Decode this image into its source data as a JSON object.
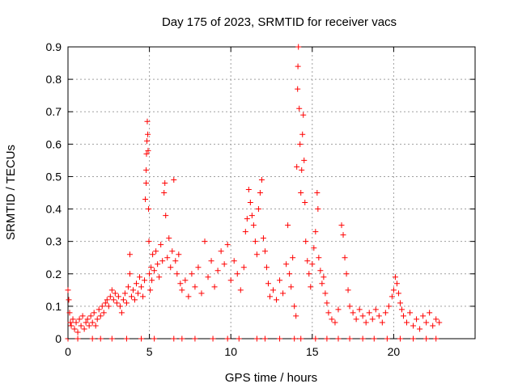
{
  "chart_data": {
    "type": "scatter",
    "title": "Day 175 of 2023, SRMTID for receiver vacs",
    "xlabel": "GPS time / hours",
    "ylabel": "SRMTID / TECUs",
    "xlim": [
      0,
      25
    ],
    "ylim": [
      0,
      0.9
    ],
    "x_ticks": [
      0,
      5,
      10,
      15,
      20
    ],
    "x_tick_labels": [
      "0",
      "5",
      "10",
      "15",
      "20"
    ],
    "y_ticks": [
      0,
      0.1,
      0.2,
      0.3,
      0.4,
      0.5,
      0.6,
      0.7,
      0.8,
      0.9
    ],
    "y_tick_labels": [
      "0",
      "0.1",
      "0.2",
      "0.3",
      "0.4",
      "0.5",
      "0.6",
      "0.7",
      "0.8",
      "0.9"
    ],
    "grid": true,
    "marker": "plus",
    "color": "#ff0000",
    "series": [
      {
        "name": "SRMTID",
        "points": [
          [
            0.0,
            0.15
          ],
          [
            0.05,
            0.12
          ],
          [
            0.1,
            0.08
          ],
          [
            0.15,
            0.05
          ],
          [
            0.2,
            0.04
          ],
          [
            0.3,
            0.06
          ],
          [
            0.4,
            0.03
          ],
          [
            0.5,
            0.05
          ],
          [
            0.6,
            0.02
          ],
          [
            0.7,
            0.06
          ],
          [
            0.8,
            0.04
          ],
          [
            0.9,
            0.07
          ],
          [
            1.0,
            0.03
          ],
          [
            1.1,
            0.05
          ],
          [
            1.2,
            0.06
          ],
          [
            1.3,
            0.04
          ],
          [
            1.4,
            0.07
          ],
          [
            1.5,
            0.05
          ],
          [
            1.6,
            0.08
          ],
          [
            1.7,
            0.04
          ],
          [
            1.8,
            0.06
          ],
          [
            1.9,
            0.09
          ],
          [
            2.0,
            0.07
          ],
          [
            2.1,
            0.1
          ],
          [
            2.2,
            0.08
          ],
          [
            2.3,
            0.11
          ],
          [
            0.0,
            0.0
          ],
          [
            0.6,
            0.0
          ],
          [
            1.5,
            0.0
          ],
          [
            2.0,
            0.0
          ],
          [
            2.7,
            0.0
          ],
          [
            3.6,
            0.0
          ],
          [
            4.5,
            0.0
          ],
          [
            5.3,
            0.0
          ],
          [
            6.5,
            0.0
          ],
          [
            7.0,
            0.0
          ],
          [
            7.8,
            0.0
          ],
          [
            8.9,
            0.0
          ],
          [
            9.8,
            0.0
          ],
          [
            10.5,
            0.0
          ],
          [
            11.6,
            0.0
          ],
          [
            12.1,
            0.0
          ],
          [
            13.0,
            0.0
          ],
          [
            13.9,
            0.0
          ],
          [
            14.3,
            0.0
          ],
          [
            15.2,
            0.0
          ],
          [
            15.9,
            0.0
          ],
          [
            16.6,
            0.0
          ],
          [
            17.3,
            0.0
          ],
          [
            18.1,
            0.0
          ],
          [
            18.8,
            0.0
          ],
          [
            19.6,
            0.0
          ],
          [
            20.4,
            0.0
          ],
          [
            21.2,
            0.0
          ],
          [
            22.0,
            0.0
          ],
          [
            22.6,
            0.0
          ],
          [
            2.4,
            0.12
          ],
          [
            2.5,
            0.1
          ],
          [
            2.6,
            0.13
          ],
          [
            2.7,
            0.15
          ],
          [
            2.8,
            0.12
          ],
          [
            2.9,
            0.14
          ],
          [
            3.0,
            0.11
          ],
          [
            3.1,
            0.13
          ],
          [
            3.2,
            0.1
          ],
          [
            3.3,
            0.08
          ],
          [
            3.4,
            0.12
          ],
          [
            3.5,
            0.14
          ],
          [
            3.6,
            0.11
          ],
          [
            3.7,
            0.16
          ],
          [
            3.8,
            0.2
          ],
          [
            3.8,
            0.26
          ],
          [
            3.9,
            0.13
          ],
          [
            4.0,
            0.15
          ],
          [
            4.1,
            0.12
          ],
          [
            4.2,
            0.17
          ],
          [
            4.3,
            0.14
          ],
          [
            4.4,
            0.19
          ],
          [
            4.5,
            0.16
          ],
          [
            4.6,
            0.13
          ],
          [
            4.7,
            0.18
          ],
          [
            4.75,
            0.43
          ],
          [
            4.8,
            0.48
          ],
          [
            4.8,
            0.52
          ],
          [
            4.82,
            0.57
          ],
          [
            4.85,
            0.61
          ],
          [
            4.87,
            0.67
          ],
          [
            4.9,
            0.63
          ],
          [
            4.92,
            0.58
          ],
          [
            4.95,
            0.4
          ],
          [
            4.97,
            0.3
          ],
          [
            5.0,
            0.2
          ],
          [
            5.05,
            0.15
          ],
          [
            5.1,
            0.22
          ],
          [
            5.15,
            0.18
          ],
          [
            5.2,
            0.26
          ],
          [
            5.3,
            0.21
          ],
          [
            5.4,
            0.27
          ],
          [
            5.5,
            0.23
          ],
          [
            5.6,
            0.19
          ],
          [
            5.7,
            0.29
          ],
          [
            5.8,
            0.24
          ],
          [
            5.9,
            0.45
          ],
          [
            5.95,
            0.48
          ],
          [
            6.0,
            0.38
          ],
          [
            6.1,
            0.25
          ],
          [
            6.2,
            0.31
          ],
          [
            6.3,
            0.22
          ],
          [
            6.4,
            0.27
          ],
          [
            6.5,
            0.49
          ],
          [
            6.6,
            0.24
          ],
          [
            6.7,
            0.2
          ],
          [
            6.8,
            0.26
          ],
          [
            6.9,
            0.17
          ],
          [
            7.0,
            0.15
          ],
          [
            7.2,
            0.18
          ],
          [
            7.4,
            0.13
          ],
          [
            7.6,
            0.2
          ],
          [
            7.8,
            0.16
          ],
          [
            8.0,
            0.22
          ],
          [
            8.2,
            0.14
          ],
          [
            8.4,
            0.3
          ],
          [
            8.6,
            0.19
          ],
          [
            8.8,
            0.24
          ],
          [
            9.0,
            0.16
          ],
          [
            9.2,
            0.21
          ],
          [
            9.4,
            0.27
          ],
          [
            9.6,
            0.23
          ],
          [
            9.8,
            0.29
          ],
          [
            10.0,
            0.18
          ],
          [
            10.2,
            0.24
          ],
          [
            10.4,
            0.2
          ],
          [
            10.6,
            0.15
          ],
          [
            10.8,
            0.22
          ],
          [
            10.9,
            0.33
          ],
          [
            11.0,
            0.37
          ],
          [
            11.1,
            0.46
          ],
          [
            11.2,
            0.42
          ],
          [
            11.3,
            0.38
          ],
          [
            11.4,
            0.35
          ],
          [
            11.5,
            0.3
          ],
          [
            11.6,
            0.26
          ],
          [
            11.7,
            0.4
          ],
          [
            11.8,
            0.45
          ],
          [
            11.9,
            0.49
          ],
          [
            12.0,
            0.31
          ],
          [
            12.1,
            0.27
          ],
          [
            12.2,
            0.22
          ],
          [
            12.3,
            0.17
          ],
          [
            12.4,
            0.13
          ],
          [
            12.6,
            0.15
          ],
          [
            12.8,
            0.12
          ],
          [
            13.0,
            0.18
          ],
          [
            13.2,
            0.14
          ],
          [
            13.4,
            0.23
          ],
          [
            13.5,
            0.35
          ],
          [
            13.6,
            0.2
          ],
          [
            13.7,
            0.16
          ],
          [
            13.8,
            0.25
          ],
          [
            13.9,
            0.1
          ],
          [
            14.0,
            0.07
          ],
          [
            14.05,
            0.53
          ],
          [
            14.1,
            0.77
          ],
          [
            14.12,
            0.84
          ],
          [
            14.15,
            0.9
          ],
          [
            14.2,
            0.71
          ],
          [
            14.25,
            0.6
          ],
          [
            14.3,
            0.45
          ],
          [
            14.35,
            0.52
          ],
          [
            14.4,
            0.63
          ],
          [
            14.45,
            0.69
          ],
          [
            14.5,
            0.55
          ],
          [
            14.55,
            0.42
          ],
          [
            14.6,
            0.3
          ],
          [
            14.7,
            0.24
          ],
          [
            14.8,
            0.2
          ],
          [
            14.9,
            0.16
          ],
          [
            15.0,
            0.23
          ],
          [
            15.1,
            0.28
          ],
          [
            15.2,
            0.33
          ],
          [
            15.3,
            0.45
          ],
          [
            15.35,
            0.4
          ],
          [
            15.4,
            0.25
          ],
          [
            15.5,
            0.21
          ],
          [
            15.6,
            0.17
          ],
          [
            15.7,
            0.19
          ],
          [
            15.8,
            0.14
          ],
          [
            15.9,
            0.11
          ],
          [
            16.0,
            0.08
          ],
          [
            16.2,
            0.06
          ],
          [
            16.4,
            0.05
          ],
          [
            16.6,
            0.09
          ],
          [
            16.8,
            0.35
          ],
          [
            16.9,
            0.32
          ],
          [
            17.0,
            0.25
          ],
          [
            17.1,
            0.2
          ],
          [
            17.2,
            0.15
          ],
          [
            17.3,
            0.1
          ],
          [
            17.5,
            0.08
          ],
          [
            17.7,
            0.06
          ],
          [
            17.9,
            0.09
          ],
          [
            18.1,
            0.07
          ],
          [
            18.3,
            0.05
          ],
          [
            18.5,
            0.08
          ],
          [
            18.7,
            0.06
          ],
          [
            18.9,
            0.09
          ],
          [
            19.1,
            0.07
          ],
          [
            19.3,
            0.05
          ],
          [
            19.5,
            0.08
          ],
          [
            19.7,
            0.1
          ],
          [
            19.9,
            0.13
          ],
          [
            20.0,
            0.15
          ],
          [
            20.1,
            0.19
          ],
          [
            20.2,
            0.17
          ],
          [
            20.3,
            0.14
          ],
          [
            20.4,
            0.11
          ],
          [
            20.5,
            0.09
          ],
          [
            20.6,
            0.07
          ],
          [
            20.8,
            0.05
          ],
          [
            21.0,
            0.08
          ],
          [
            21.2,
            0.04
          ],
          [
            21.4,
            0.06
          ],
          [
            21.6,
            0.03
          ],
          [
            21.8,
            0.07
          ],
          [
            22.0,
            0.05
          ],
          [
            22.2,
            0.08
          ],
          [
            22.4,
            0.04
          ],
          [
            22.6,
            0.06
          ],
          [
            22.8,
            0.05
          ]
        ]
      }
    ]
  }
}
